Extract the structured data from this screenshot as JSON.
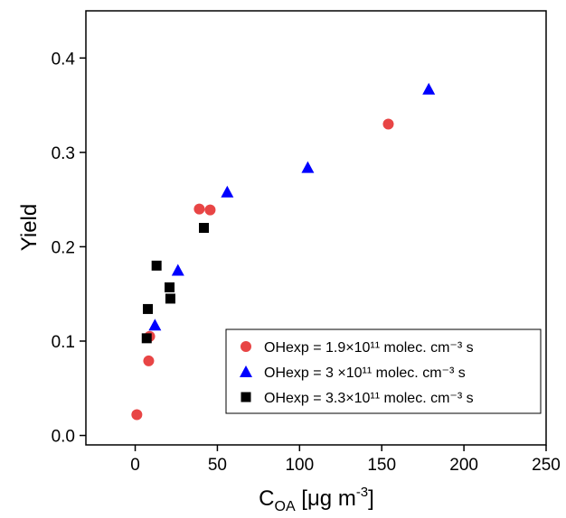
{
  "chart_data": {
    "type": "scatter",
    "y_label": "Yield",
    "x_label": {
      "base": "C",
      "sub": "OA",
      "rest": " [μg m",
      "sup": "-3",
      "end": "]"
    },
    "xlim": [
      -30,
      250
    ],
    "xticks": [
      0,
      50,
      100,
      150,
      200,
      250
    ],
    "ylim": [
      -0.01,
      0.45
    ],
    "yticks": [
      {
        "value": 0,
        "label": "0.0"
      },
      0.1,
      0.2,
      0.3,
      0.4
    ],
    "legend": "lower right",
    "series": [
      {
        "name": "OHexp = 1.9×10¹¹ molec. cm⁻³ s",
        "color": "#e84545",
        "marker": "circle",
        "x": [
          1,
          8.2,
          8.8,
          39,
          45.6,
          154
        ],
        "values": [
          0.022,
          0.079,
          0.105,
          0.24,
          0.239,
          0.33
        ]
      },
      {
        "name": "OHexp = 3 ×10¹¹ molec. cm⁻³ s",
        "color": "#0000ff",
        "marker": "triangle",
        "x": [
          12,
          26,
          56,
          105,
          178.6
        ],
        "values": [
          0.117,
          0.175,
          0.258,
          0.284,
          0.367
        ]
      },
      {
        "name": "OHexp = 3.3×10¹¹ molec. cm⁻³ s",
        "color": "#000000",
        "marker": "square",
        "x": [
          7,
          7.7,
          13,
          20.9,
          21.4,
          41.8
        ],
        "values": [
          0.103,
          0.134,
          0.18,
          0.157,
          0.145,
          0.22
        ]
      }
    ]
  }
}
